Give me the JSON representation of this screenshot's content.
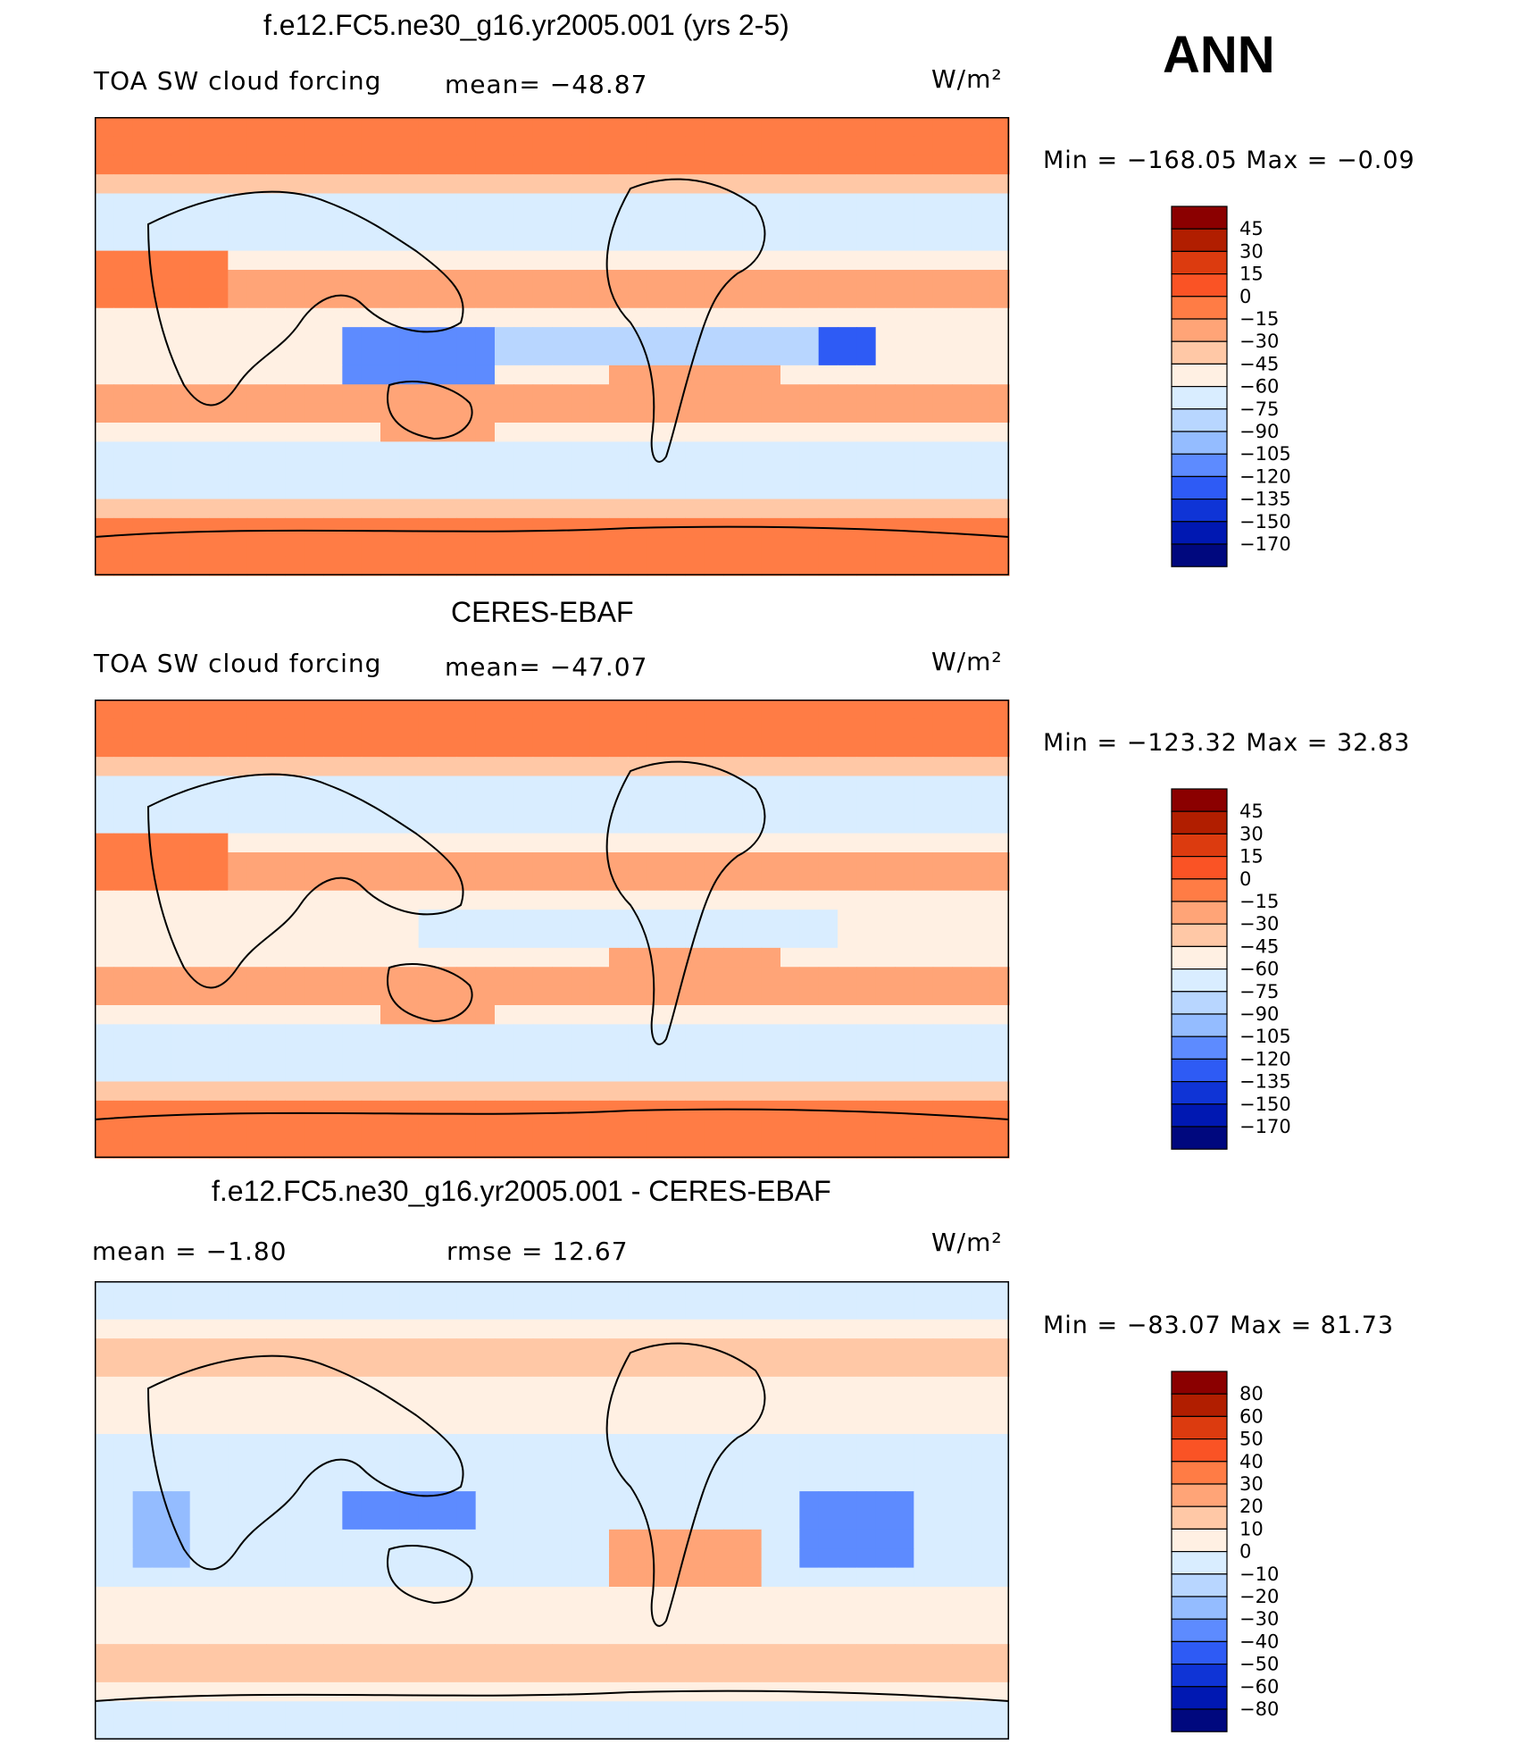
{
  "season": "ANN",
  "units": "W/m²",
  "chart_data": [
    {
      "type": "heatmap",
      "title": "f.e12.FC5.ne30_g16.yr2005.001 (yrs 2-5)",
      "variable": "TOA SW cloud forcing",
      "stat_text": "mean=  −48.87",
      "mean": -48.87,
      "min": -168.05,
      "max": -0.09,
      "minmax_text": "Min  =  −168.05  Max  =    −0.09",
      "x_range": [
        0,
        360
      ],
      "y_range": [
        -90,
        90
      ],
      "colorbar_levels": [
        "45",
        "30",
        "15",
        "0",
        "−15",
        "−30",
        "−45",
        "−60",
        "−75",
        "−90",
        "−105",
        "−120",
        "−135",
        "−150",
        "−170"
      ],
      "colorbar_colors": [
        "#8b0000",
        "#b11e00",
        "#dc3b0f",
        "#fa5325",
        "#ff7c45",
        "#ffa477",
        "#ffc8a6",
        "#fff0e3",
        "#d9edff",
        "#b8d6ff",
        "#94bcff",
        "#5d8bff",
        "#2e5bf5",
        "#0f34d6",
        "#0018b2",
        "#00087e"
      ]
    },
    {
      "type": "heatmap",
      "title": "CERES-EBAF",
      "variable": "TOA SW cloud forcing",
      "stat_text": "mean=  −47.07",
      "mean": -47.07,
      "min": -123.32,
      "max": 32.83,
      "minmax_text": "Min  =  −123.32  Max  =    32.83",
      "x_range": [
        0,
        360
      ],
      "y_range": [
        -90,
        90
      ],
      "colorbar_levels": [
        "45",
        "30",
        "15",
        "0",
        "−15",
        "−30",
        "−45",
        "−60",
        "−75",
        "−90",
        "−105",
        "−120",
        "−135",
        "−150",
        "−170"
      ],
      "colorbar_colors": [
        "#8b0000",
        "#b11e00",
        "#dc3b0f",
        "#fa5325",
        "#ff7c45",
        "#ffa477",
        "#ffc8a6",
        "#fff0e3",
        "#d9edff",
        "#b8d6ff",
        "#94bcff",
        "#5d8bff",
        "#2e5bf5",
        "#0f34d6",
        "#0018b2",
        "#00087e"
      ]
    },
    {
      "type": "heatmap",
      "title": "f.e12.FC5.ne30_g16.yr2005.001 - CERES-EBAF",
      "variable": "",
      "stat_text": "mean  =    −1.80",
      "stat2_text": "rmse  =    12.67",
      "mean": -1.8,
      "rmse": 12.67,
      "min": -83.07,
      "max": 81.73,
      "minmax_text": "Min  =  −83.07  Max  =    81.73",
      "x_range": [
        0,
        360
      ],
      "y_range": [
        -90,
        90
      ],
      "colorbar_levels": [
        "80",
        "60",
        "50",
        "40",
        "30",
        "20",
        "10",
        "0",
        "−10",
        "−20",
        "−30",
        "−40",
        "−50",
        "−60",
        "−80"
      ],
      "colorbar_colors": [
        "#8b0000",
        "#b11e00",
        "#dc3b0f",
        "#fa5325",
        "#ff7c45",
        "#ffa477",
        "#ffc8a6",
        "#fff0e3",
        "#d9edff",
        "#b8d6ff",
        "#94bcff",
        "#5d8bff",
        "#2e5bf5",
        "#0f34d6",
        "#0018b2",
        "#00087e"
      ]
    }
  ]
}
